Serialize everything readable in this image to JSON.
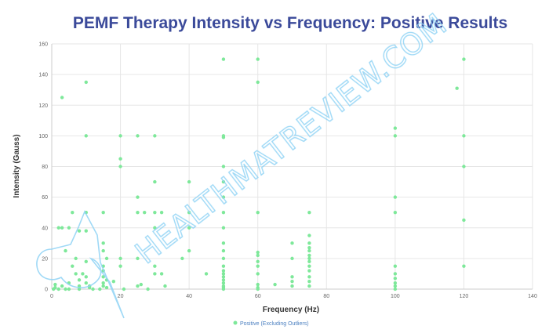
{
  "colors": {
    "title": "#3b4a9a",
    "point": "#7ee89a",
    "grid": "#e6e6e6",
    "axis": "#cccccc",
    "watermark": "#8fd3f5",
    "legend_text": "#4a7fc0"
  },
  "watermark": {
    "text": "HEALTHMATREVIEW.COM",
    "icon": "heart-outline-icon"
  },
  "chart_data": {
    "type": "scatter",
    "title": "PEMF Therapy Intensity vs Frequency: Positive Results",
    "xlabel": "Frequency (Hz)",
    "ylabel": "Intensity (Gauss)",
    "xlim": [
      0,
      140
    ],
    "ylim": [
      0,
      160
    ],
    "x_ticks": [
      0,
      20,
      40,
      60,
      80,
      100,
      120,
      140
    ],
    "y_ticks": [
      0,
      20,
      40,
      60,
      80,
      100,
      120,
      140,
      160
    ],
    "grid": true,
    "legend_position": "bottom-center",
    "series": [
      {
        "name": "Positive (Excluding Outliers)",
        "color": "#7ee89a",
        "points": [
          [
            0.5,
            0
          ],
          [
            1,
            1
          ],
          [
            1,
            3
          ],
          [
            2,
            0
          ],
          [
            2,
            40
          ],
          [
            3,
            40
          ],
          [
            3,
            125
          ],
          [
            3,
            2
          ],
          [
            4,
            0
          ],
          [
            4,
            25
          ],
          [
            5,
            40
          ],
          [
            5,
            0
          ],
          [
            5,
            4
          ],
          [
            6,
            50
          ],
          [
            6,
            15
          ],
          [
            7,
            20
          ],
          [
            7,
            10
          ],
          [
            8,
            0
          ],
          [
            8,
            2
          ],
          [
            8,
            38
          ],
          [
            8,
            6
          ],
          [
            9,
            10
          ],
          [
            10,
            38
          ],
          [
            10,
            50
          ],
          [
            10,
            135
          ],
          [
            10,
            100
          ],
          [
            10,
            18
          ],
          [
            10,
            8
          ],
          [
            10,
            4
          ],
          [
            11,
            2
          ],
          [
            11,
            1
          ],
          [
            12,
            0
          ],
          [
            14,
            0
          ],
          [
            15,
            50
          ],
          [
            15,
            30
          ],
          [
            15,
            25
          ],
          [
            15,
            15
          ],
          [
            15,
            12
          ],
          [
            15,
            8
          ],
          [
            15,
            4
          ],
          [
            15,
            2
          ],
          [
            16,
            20
          ],
          [
            16,
            6
          ],
          [
            16,
            1
          ],
          [
            18,
            5
          ],
          [
            20,
            100
          ],
          [
            20,
            85
          ],
          [
            20,
            80
          ],
          [
            20,
            20
          ],
          [
            20,
            15
          ],
          [
            21,
            0
          ],
          [
            25,
            100
          ],
          [
            25,
            60
          ],
          [
            25,
            50
          ],
          [
            25,
            20
          ],
          [
            25,
            2
          ],
          [
            26,
            3
          ],
          [
            27,
            50
          ],
          [
            28,
            0
          ],
          [
            30,
            100
          ],
          [
            30,
            70
          ],
          [
            30,
            50
          ],
          [
            30,
            40
          ],
          [
            30,
            15
          ],
          [
            30,
            10
          ],
          [
            32,
            50
          ],
          [
            32,
            10
          ],
          [
            33,
            2
          ],
          [
            38,
            20
          ],
          [
            40,
            70
          ],
          [
            40,
            50
          ],
          [
            40,
            40
          ],
          [
            40,
            25
          ],
          [
            45,
            10
          ],
          [
            50,
            150
          ],
          [
            50,
            100
          ],
          [
            50,
            99
          ],
          [
            50,
            80
          ],
          [
            50,
            70
          ],
          [
            50,
            60
          ],
          [
            50,
            50
          ],
          [
            50,
            40
          ],
          [
            50,
            30
          ],
          [
            50,
            25
          ],
          [
            50,
            20
          ],
          [
            50,
            15
          ],
          [
            50,
            12
          ],
          [
            50,
            10
          ],
          [
            50,
            8
          ],
          [
            50,
            6
          ],
          [
            50,
            4
          ],
          [
            50,
            2
          ],
          [
            50,
            1
          ],
          [
            50,
            0
          ],
          [
            60,
            150
          ],
          [
            60,
            135
          ],
          [
            60,
            50
          ],
          [
            60,
            24
          ],
          [
            60,
            22
          ],
          [
            60,
            18
          ],
          [
            60,
            15
          ],
          [
            60,
            10
          ],
          [
            60,
            3
          ],
          [
            60,
            1
          ],
          [
            60,
            0
          ],
          [
            65,
            3
          ],
          [
            70,
            30
          ],
          [
            70,
            20
          ],
          [
            70,
            8
          ],
          [
            70,
            5
          ],
          [
            70,
            2
          ],
          [
            75,
            50
          ],
          [
            75,
            35
          ],
          [
            75,
            30
          ],
          [
            75,
            27
          ],
          [
            75,
            25
          ],
          [
            75,
            22
          ],
          [
            75,
            20
          ],
          [
            75,
            18
          ],
          [
            75,
            15
          ],
          [
            75,
            12
          ],
          [
            75,
            8
          ],
          [
            75,
            5
          ],
          [
            75,
            2
          ],
          [
            100,
            105
          ],
          [
            100,
            100
          ],
          [
            100,
            60
          ],
          [
            100,
            50
          ],
          [
            100,
            15
          ],
          [
            100,
            10
          ],
          [
            100,
            7
          ],
          [
            100,
            4
          ],
          [
            100,
            2
          ],
          [
            100,
            0
          ],
          [
            118,
            131
          ],
          [
            120,
            150
          ],
          [
            120,
            100
          ],
          [
            120,
            80
          ],
          [
            120,
            45
          ],
          [
            120,
            15
          ]
        ]
      }
    ]
  }
}
